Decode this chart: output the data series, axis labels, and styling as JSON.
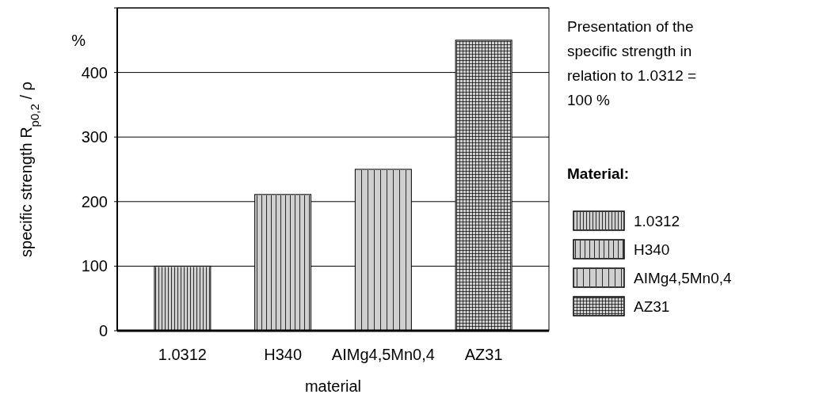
{
  "chart_data": {
    "type": "bar",
    "categories": [
      "1.0312",
      "H340",
      "AIMg4,5Mn0,4",
      "AZ31"
    ],
    "stacked": true,
    "series": [
      {
        "name": "1.0312",
        "color": "#d0d0d0",
        "values": [
          100,
          null,
          null,
          null
        ]
      },
      {
        "name": "H340",
        "color": "#d0d0d0",
        "values": [
          null,
          211,
          null,
          null
        ]
      },
      {
        "name": "AIMg4,5Mn0,4",
        "color": "#d0d0d0",
        "values": [
          null,
          null,
          250,
          null
        ]
      },
      {
        "name": "AZ31",
        "color": "#d0d0d0",
        "values": [
          null,
          null,
          null,
          450
        ]
      }
    ],
    "ylim": [
      0,
      500
    ],
    "yticks": [
      0,
      100,
      200,
      300,
      400,
      {
        "value": 500,
        "label": null
      }
    ],
    "ylabel": "specific strength R$_{p0,2}$ / ρ",
    "xlabel": "material",
    "legend_title": "Material:",
    "legend": "right",
    "grid": "y",
    "annotations": [
      "%",
      "Presentation of the specific strength in relation to 1.0312 = 100 %"
    ]
  }
}
